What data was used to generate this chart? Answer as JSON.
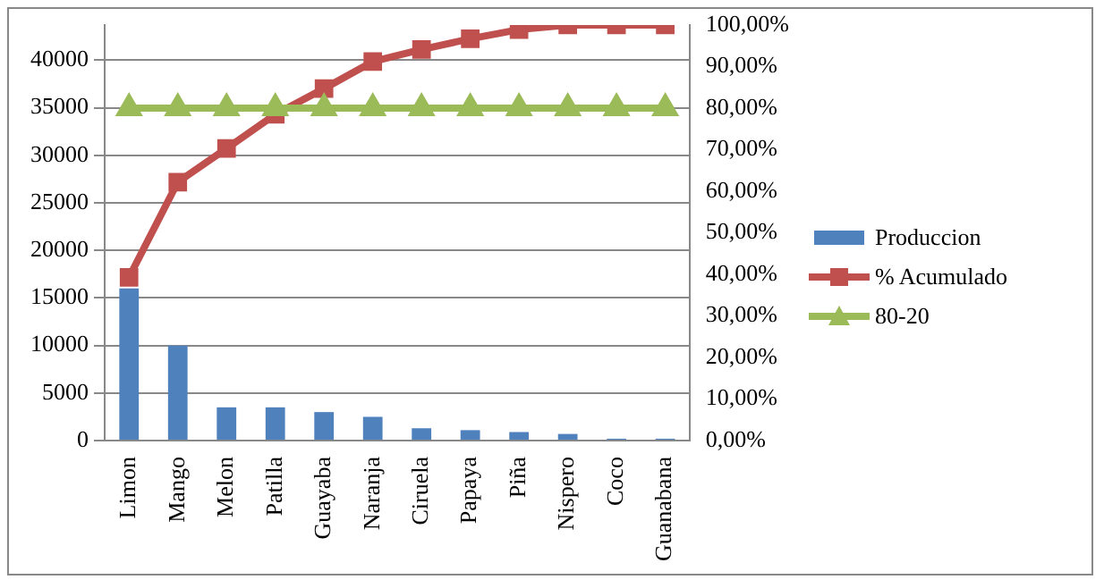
{
  "chart_data": {
    "type": "bar",
    "categories": [
      "Limon",
      "Mango",
      "Melon",
      "Patilla",
      "Guayaba",
      "Naranja",
      "Ciruela",
      "Papaya",
      "Piña",
      "Nispero",
      "Coco",
      "Guanabana"
    ],
    "series": [
      {
        "name": "Produccion",
        "color": "#4f81bd",
        "values": [
          16000,
          10000,
          3500,
          3500,
          3000,
          2500,
          1300,
          1100,
          900,
          700,
          200,
          200
        ]
      },
      {
        "name": "% Acumulado",
        "type": "line",
        "axis": "y2",
        "marker": "square",
        "color": "#c0504d",
        "values": [
          39.3,
          62.2,
          70.3,
          78.5,
          84.7,
          91.2,
          94.1,
          96.7,
          98.9,
          100,
          100,
          100
        ]
      },
      {
        "name": "80-20",
        "type": "line",
        "axis": "y2",
        "marker": "triangle",
        "color": "#9bbb59",
        "values": [
          80,
          80,
          80,
          80,
          80,
          80,
          80,
          80,
          80,
          80,
          80,
          80
        ]
      }
    ],
    "ylim": [
      0,
      43700
    ],
    "yticks": [
      0,
      5000,
      10000,
      15000,
      20000,
      25000,
      30000,
      35000,
      40000
    ],
    "y2lim": [
      0,
      100
    ],
    "y2ticks": [
      {
        "value": 0,
        "label": "0,00%"
      },
      {
        "value": 10,
        "label": "10,00%"
      },
      {
        "value": 20,
        "label": "20,00%"
      },
      {
        "value": 30,
        "label": "30,00%"
      },
      {
        "value": 40,
        "label": "40,00%"
      },
      {
        "value": 50,
        "label": "50,00%"
      },
      {
        "value": 60,
        "label": "60,00%"
      },
      {
        "value": 70,
        "label": "70,00%"
      },
      {
        "value": 80,
        "label": "80,00%"
      },
      {
        "value": 90,
        "label": "90,00%"
      },
      {
        "value": 100,
        "label": "100,00%"
      }
    ],
    "grid": "y",
    "legend": "right"
  }
}
